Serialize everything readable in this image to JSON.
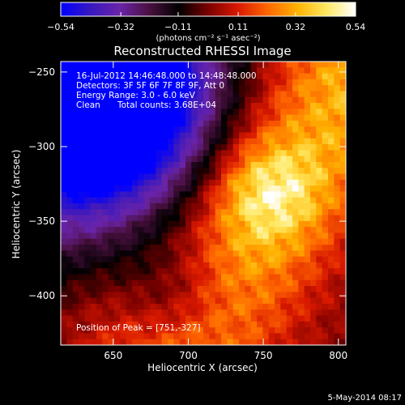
{
  "chart_data": {
    "type": "heatmap",
    "title": "Reconstructed RHESSI Image",
    "xlabel": "Heliocentric X (arcsec)",
    "ylabel": "Heliocentric Y (arcsec)",
    "xlim": [
      615,
      805
    ],
    "ylim": [
      -433,
      -243
    ],
    "x_ticks": [
      650,
      700,
      750,
      800
    ],
    "x_tick_labels": [
      "650",
      "700",
      "750",
      "800"
    ],
    "y_ticks": [
      -250,
      -300,
      -350,
      -400
    ],
    "y_tick_labels": [
      "−250",
      "−300",
      "−350",
      "−400"
    ],
    "colorbar": {
      "min": -0.54,
      "max": 0.54,
      "tick_values": [
        -0.54,
        -0.32,
        -0.11,
        0.11,
        0.32,
        0.54
      ],
      "tick_labels": [
        "−0.54",
        "−0.32",
        "−0.11",
        "0.11",
        "0.32",
        "0.54"
      ],
      "units": "(photons cm⁻² s⁻¹ asec⁻²)",
      "colors": [
        "#0000ff",
        "#3818c0",
        "#6a24a8",
        "#4a1040",
        "#000000",
        "#7a0000",
        "#d81800",
        "#ff6600",
        "#ffb000",
        "#ffe860",
        "#ffffff"
      ]
    },
    "peak": [
      751,
      -327
    ],
    "features": {
      "bright_ridge_start": [
        700,
        -420
      ],
      "bright_ridge_end": [
        800,
        -265
      ],
      "bright_core": [
        752,
        -330
      ],
      "negative_region_center": [
        640,
        -270
      ]
    },
    "annotations": {
      "time_range": "16-Jul-2012 14:46:48.000 to 14:48:48.000",
      "detectors": "Detectors: 3F 5F 6F 7F 8F 9F, Att 0",
      "energy_range": "Energy Range: 3.0 - 6.0 keV",
      "algorithm_label": "Clean",
      "total_counts": "Total counts: 3.68E+04",
      "peak_position": "Position of Peak = [751,-327]"
    },
    "grid": false
  },
  "footer": {
    "date_stamp": "5-May-2014 08:17"
  }
}
